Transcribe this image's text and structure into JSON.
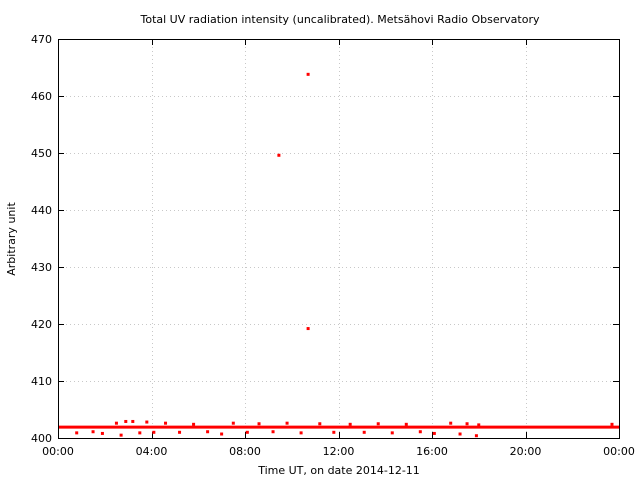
{
  "chart_data": {
    "type": "scatter",
    "title": "Total UV radiation intensity (uncalibrated). Metsähovi Radio Observatory",
    "xlabel": "Time UT, on date 2014-12-11",
    "ylabel": "Arbitrary unit",
    "xlim": [
      0,
      24
    ],
    "ylim": [
      400,
      470
    ],
    "x_ticks": [
      0,
      4,
      8,
      12,
      16,
      20,
      24
    ],
    "x_tick_labels": [
      "00:00",
      "04:00",
      "08:00",
      "12:00",
      "16:00",
      "20:00",
      "00:00"
    ],
    "y_ticks": [
      400,
      410,
      420,
      430,
      440,
      450,
      460,
      470
    ],
    "y_tick_labels": [
      "400",
      "410",
      "420",
      "430",
      "440",
      "450",
      "460",
      "470"
    ],
    "grid": true,
    "marker_color": "#ff0000",
    "baseline": {
      "value": 401.9,
      "x_range": [
        0,
        24
      ]
    },
    "series": [
      {
        "points": [
          [
            10.7,
            463.8
          ],
          [
            9.45,
            449.6
          ],
          [
            10.7,
            419.2
          ],
          [
            0.8,
            400.9
          ],
          [
            1.5,
            401.1
          ],
          [
            1.9,
            400.8
          ],
          [
            2.5,
            402.6
          ],
          [
            2.7,
            400.5
          ],
          [
            2.9,
            402.9
          ],
          [
            3.2,
            402.9
          ],
          [
            3.5,
            400.9
          ],
          [
            3.8,
            402.8
          ],
          [
            4.1,
            401.0
          ],
          [
            4.6,
            402.6
          ],
          [
            5.2,
            401.0
          ],
          [
            5.8,
            402.4
          ],
          [
            6.4,
            401.1
          ],
          [
            7.0,
            400.7
          ],
          [
            7.5,
            402.6
          ],
          [
            8.1,
            401.0
          ],
          [
            8.6,
            402.5
          ],
          [
            9.2,
            401.1
          ],
          [
            9.8,
            402.6
          ],
          [
            10.4,
            400.9
          ],
          [
            11.2,
            402.5
          ],
          [
            11.8,
            401.0
          ],
          [
            12.5,
            402.4
          ],
          [
            13.1,
            401.0
          ],
          [
            13.7,
            402.5
          ],
          [
            14.3,
            400.9
          ],
          [
            14.9,
            402.4
          ],
          [
            15.5,
            401.1
          ],
          [
            16.1,
            400.8
          ],
          [
            16.8,
            402.6
          ],
          [
            17.2,
            400.7
          ],
          [
            17.5,
            402.5
          ],
          [
            17.9,
            400.4
          ],
          [
            18.0,
            402.3
          ],
          [
            23.7,
            402.4
          ]
        ]
      }
    ]
  }
}
